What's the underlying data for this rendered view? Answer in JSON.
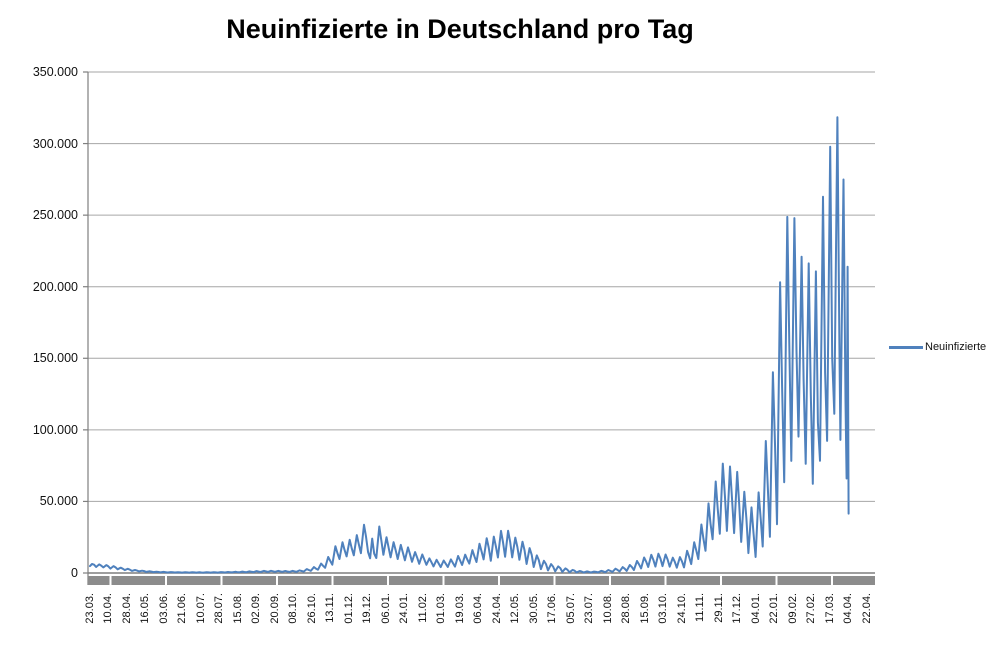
{
  "title": "Neuinfizierte in Deutschland pro Tag",
  "legend": {
    "label": "Neuinfizierte"
  },
  "colors": {
    "line": "#4f81bd",
    "gridline": "#a6a6a6",
    "axis": "#7f7f7f",
    "axis_bar": "#8c8c8c",
    "text": "#111111"
  },
  "chart_data": {
    "type": "line",
    "title": "Neuinfizierte in Deutschland pro Tag",
    "series_name": "Neuinfizierte",
    "legend_position": "right",
    "grid": "horizontal",
    "ylim": [
      0,
      350000
    ],
    "y_ticks": [
      {
        "label": "350.000",
        "value": 350000
      },
      {
        "label": "300.000",
        "value": 300000
      },
      {
        "label": "250.000",
        "value": 250000
      },
      {
        "label": "200.000",
        "value": 200000
      },
      {
        "label": "150.000",
        "value": 150000
      },
      {
        "label": "100.000",
        "value": 100000
      },
      {
        "label": "50.000",
        "value": 50000
      },
      {
        "label": "0",
        "value": 0
      }
    ],
    "x_tick_labels": [
      "23.03.",
      "10.04.",
      "28.04.",
      "16.05.",
      "03.06.",
      "21.06.",
      "10.07.",
      "28.07.",
      "15.08.",
      "02.09.",
      "20.09.",
      "08.10.",
      "26.10.",
      "13.11.",
      "01.12.",
      "19.12.",
      "06.01.",
      "24.01.",
      "11.02.",
      "01.03.",
      "19.03.",
      "06.04.",
      "24.04.",
      "12.05.",
      "30.05.",
      "17.06.",
      "05.07.",
      "23.07.",
      "10.08.",
      "28.08.",
      "15.09.",
      "03.10.",
      "24.10.",
      "11.11.",
      "29.11.",
      "17.12.",
      "04.01.",
      "22.01.",
      "09.02.",
      "27.02.",
      "17.03.",
      "04.04.",
      "22.04."
    ],
    "x_start_date": "23.03.2020",
    "x_axis_total_days": 760,
    "x_tick_interval_days": 18,
    "points": [
      [
        0,
        4800
      ],
      [
        2,
        6300
      ],
      [
        4,
        5800
      ],
      [
        6,
        4200
      ],
      [
        9,
        6000
      ],
      [
        11,
        5200
      ],
      [
        13,
        3900
      ],
      [
        16,
        5500
      ],
      [
        18,
        4600
      ],
      [
        20,
        3100
      ],
      [
        23,
        4800
      ],
      [
        25,
        3900
      ],
      [
        27,
        2600
      ],
      [
        30,
        3700
      ],
      [
        32,
        3000
      ],
      [
        34,
        2000
      ],
      [
        37,
        2900
      ],
      [
        39,
        2300
      ],
      [
        41,
        1500
      ],
      [
        44,
        2100
      ],
      [
        46,
        1700
      ],
      [
        48,
        1100
      ],
      [
        51,
        1600
      ],
      [
        53,
        1300
      ],
      [
        55,
        800
      ],
      [
        58,
        1200
      ],
      [
        60,
        950
      ],
      [
        62,
        600
      ],
      [
        65,
        900
      ],
      [
        67,
        700
      ],
      [
        69,
        450
      ],
      [
        72,
        750
      ],
      [
        74,
        570
      ],
      [
        76,
        380
      ],
      [
        79,
        650
      ],
      [
        81,
        500
      ],
      [
        83,
        330
      ],
      [
        86,
        580
      ],
      [
        88,
        440
      ],
      [
        90,
        300
      ],
      [
        93,
        520
      ],
      [
        95,
        400
      ],
      [
        97,
        280
      ],
      [
        100,
        500
      ],
      [
        102,
        390
      ],
      [
        104,
        270
      ],
      [
        107,
        480
      ],
      [
        109,
        370
      ],
      [
        111,
        260
      ],
      [
        114,
        520
      ],
      [
        116,
        400
      ],
      [
        118,
        290
      ],
      [
        121,
        560
      ],
      [
        123,
        430
      ],
      [
        125,
        310
      ],
      [
        128,
        620
      ],
      [
        130,
        480
      ],
      [
        132,
        350
      ],
      [
        135,
        700
      ],
      [
        137,
        540
      ],
      [
        139,
        400
      ],
      [
        142,
        820
      ],
      [
        144,
        630
      ],
      [
        146,
        460
      ],
      [
        149,
        950
      ],
      [
        151,
        730
      ],
      [
        153,
        540
      ],
      [
        156,
        1100
      ],
      [
        158,
        850
      ],
      [
        160,
        620
      ],
      [
        163,
        1300
      ],
      [
        165,
        1000
      ],
      [
        167,
        730
      ],
      [
        170,
        1450
      ],
      [
        172,
        1100
      ],
      [
        174,
        800
      ],
      [
        177,
        1550
      ],
      [
        179,
        1200
      ],
      [
        181,
        870
      ],
      [
        184,
        1500
      ],
      [
        186,
        1150
      ],
      [
        188,
        830
      ],
      [
        191,
        1400
      ],
      [
        193,
        1080
      ],
      [
        195,
        780
      ],
      [
        198,
        1500
      ],
      [
        200,
        1150
      ],
      [
        202,
        830
      ],
      [
        205,
        1800
      ],
      [
        207,
        1400
      ],
      [
        209,
        1000
      ],
      [
        212,
        2700
      ],
      [
        214,
        2100
      ],
      [
        216,
        1500
      ],
      [
        219,
        4100
      ],
      [
        221,
        3100
      ],
      [
        223,
        2300
      ],
      [
        226,
        6600
      ],
      [
        228,
        5000
      ],
      [
        230,
        3600
      ],
      [
        233,
        11200
      ],
      [
        235,
        8400
      ],
      [
        237,
        5800
      ],
      [
        240,
        18700
      ],
      [
        242,
        14000
      ],
      [
        244,
        9800
      ],
      [
        247,
        21500
      ],
      [
        249,
        16000
      ],
      [
        251,
        11600
      ],
      [
        254,
        23200
      ],
      [
        256,
        17300
      ],
      [
        258,
        12400
      ],
      [
        261,
        26500
      ],
      [
        263,
        19800
      ],
      [
        265,
        13800
      ],
      [
        268,
        33700
      ],
      [
        270,
        25500
      ],
      [
        272,
        14500
      ],
      [
        274,
        10300
      ],
      [
        276,
        24000
      ],
      [
        278,
        13500
      ],
      [
        280,
        10500
      ],
      [
        283,
        32500
      ],
      [
        285,
        22400
      ],
      [
        287,
        12700
      ],
      [
        290,
        25000
      ],
      [
        292,
        18100
      ],
      [
        294,
        11000
      ],
      [
        297,
        21500
      ],
      [
        299,
        15800
      ],
      [
        301,
        9800
      ],
      [
        304,
        19600
      ],
      [
        306,
        14400
      ],
      [
        308,
        8900
      ],
      [
        311,
        17900
      ],
      [
        313,
        13100
      ],
      [
        315,
        7800
      ],
      [
        318,
        14600
      ],
      [
        320,
        10700
      ],
      [
        322,
        6400
      ],
      [
        325,
        12900
      ],
      [
        327,
        9400
      ],
      [
        329,
        5700
      ],
      [
        332,
        10200
      ],
      [
        334,
        7500
      ],
      [
        336,
        4600
      ],
      [
        339,
        9200
      ],
      [
        341,
        6700
      ],
      [
        343,
        4100
      ],
      [
        346,
        8700
      ],
      [
        348,
        6400
      ],
      [
        350,
        4200
      ],
      [
        353,
        9500
      ],
      [
        355,
        7000
      ],
      [
        357,
        4500
      ],
      [
        360,
        11900
      ],
      [
        362,
        8700
      ],
      [
        364,
        5600
      ],
      [
        367,
        12800
      ],
      [
        369,
        9400
      ],
      [
        371,
        6600
      ],
      [
        374,
        16000
      ],
      [
        376,
        11700
      ],
      [
        378,
        7700
      ],
      [
        381,
        20500
      ],
      [
        383,
        15000
      ],
      [
        385,
        9500
      ],
      [
        388,
        24300
      ],
      [
        390,
        17800
      ],
      [
        392,
        8500
      ],
      [
        395,
        25400
      ],
      [
        397,
        18600
      ],
      [
        399,
        10800
      ],
      [
        402,
        29400
      ],
      [
        404,
        21500
      ],
      [
        406,
        11400
      ],
      [
        409,
        29500
      ],
      [
        411,
        21600
      ],
      [
        413,
        10900
      ],
      [
        416,
        24700
      ],
      [
        418,
        18100
      ],
      [
        420,
        9200
      ],
      [
        423,
        21900
      ],
      [
        425,
        16000
      ],
      [
        427,
        6300
      ],
      [
        430,
        17400
      ],
      [
        432,
        12700
      ],
      [
        434,
        4200
      ],
      [
        437,
        12300
      ],
      [
        439,
        9000
      ],
      [
        441,
        2700
      ],
      [
        444,
        8500
      ],
      [
        446,
        6200
      ],
      [
        448,
        1800
      ],
      [
        451,
        6200
      ],
      [
        453,
        4500
      ],
      [
        455,
        1200
      ],
      [
        458,
        4600
      ],
      [
        460,
        3400
      ],
      [
        462,
        800
      ],
      [
        465,
        3200
      ],
      [
        467,
        2300
      ],
      [
        469,
        500
      ],
      [
        472,
        2200
      ],
      [
        474,
        1600
      ],
      [
        476,
        400
      ],
      [
        479,
        1400
      ],
      [
        481,
        1000
      ],
      [
        483,
        350
      ],
      [
        486,
        1100
      ],
      [
        488,
        800
      ],
      [
        490,
        380
      ],
      [
        493,
        1000
      ],
      [
        495,
        750
      ],
      [
        497,
        400
      ],
      [
        500,
        1500
      ],
      [
        502,
        1100
      ],
      [
        504,
        550
      ],
      [
        507,
        2100
      ],
      [
        509,
        1500
      ],
      [
        511,
        800
      ],
      [
        514,
        3000
      ],
      [
        516,
        2200
      ],
      [
        518,
        1100
      ],
      [
        521,
        4100
      ],
      [
        523,
        3000
      ],
      [
        525,
        1500
      ],
      [
        528,
        5600
      ],
      [
        530,
        4100
      ],
      [
        532,
        2100
      ],
      [
        535,
        8400
      ],
      [
        537,
        6100
      ],
      [
        539,
        3200
      ],
      [
        542,
        10800
      ],
      [
        544,
        7900
      ],
      [
        546,
        4200
      ],
      [
        549,
        12700
      ],
      [
        551,
        9300
      ],
      [
        553,
        4500
      ],
      [
        556,
        13500
      ],
      [
        558,
        9900
      ],
      [
        560,
        4800
      ],
      [
        563,
        12900
      ],
      [
        565,
        9400
      ],
      [
        567,
        4400
      ],
      [
        570,
        10700
      ],
      [
        572,
        7800
      ],
      [
        574,
        3700
      ],
      [
        577,
        11100
      ],
      [
        579,
        8100
      ],
      [
        581,
        3900
      ],
      [
        584,
        15500
      ],
      [
        586,
        11300
      ],
      [
        588,
        6200
      ],
      [
        591,
        21500
      ],
      [
        593,
        15700
      ],
      [
        595,
        9800
      ],
      [
        598,
        33900
      ],
      [
        600,
        24000
      ],
      [
        602,
        15500
      ],
      [
        605,
        48600
      ],
      [
        607,
        34000
      ],
      [
        609,
        23600
      ],
      [
        612,
        63900
      ],
      [
        614,
        45000
      ],
      [
        616,
        27400
      ],
      [
        619,
        76400
      ],
      [
        621,
        54000
      ],
      [
        623,
        29400
      ],
      [
        626,
        74400
      ],
      [
        628,
        52000
      ],
      [
        630,
        27900
      ],
      [
        633,
        70600
      ],
      [
        635,
        48000
      ],
      [
        637,
        21700
      ],
      [
        640,
        56700
      ],
      [
        642,
        38000
      ],
      [
        644,
        13900
      ],
      [
        647,
        45800
      ],
      [
        649,
        28000
      ],
      [
        651,
        11200
      ],
      [
        654,
        56300
      ],
      [
        656,
        38000
      ],
      [
        658,
        18500
      ],
      [
        661,
        92200
      ],
      [
        663,
        60000
      ],
      [
        665,
        25300
      ],
      [
        668,
        140200
      ],
      [
        670,
        90000
      ],
      [
        672,
        34100
      ],
      [
        675,
        203100
      ],
      [
        677,
        130000
      ],
      [
        679,
        63400
      ],
      [
        682,
        248800
      ],
      [
        684,
        160000
      ],
      [
        686,
        78300
      ],
      [
        689,
        247900
      ],
      [
        691,
        155000
      ],
      [
        693,
        95300
      ],
      [
        696,
        221000
      ],
      [
        698,
        135000
      ],
      [
        700,
        76300
      ],
      [
        703,
        216300
      ],
      [
        705,
        125000
      ],
      [
        707,
        62300
      ],
      [
        710,
        210700
      ],
      [
        712,
        105000
      ],
      [
        714,
        78400
      ],
      [
        717,
        262800
      ],
      [
        719,
        140000
      ],
      [
        721,
        92300
      ],
      [
        724,
        297800
      ],
      [
        726,
        150000
      ],
      [
        728,
        111200
      ],
      [
        731,
        318400
      ],
      [
        733,
        160000
      ],
      [
        734,
        93000
      ],
      [
        737,
        274900
      ],
      [
        739,
        120000
      ],
      [
        740,
        66000
      ],
      [
        741,
        214000
      ],
      [
        742,
        41500
      ]
    ]
  }
}
